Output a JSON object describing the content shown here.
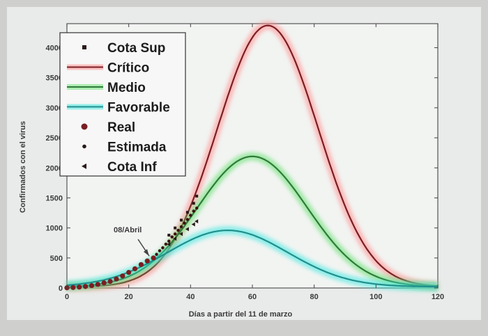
{
  "chart_data": {
    "type": "line",
    "xlabel": "Días a partir del 11 de marzo",
    "ylabel": "Confirmados con el virus",
    "xlim": [
      0,
      120
    ],
    "ylim": [
      0,
      4400
    ],
    "x_ticks": [
      0,
      20,
      40,
      60,
      80,
      100,
      120
    ],
    "y_ticks": [
      0,
      500,
      1000,
      1500,
      2000,
      2500,
      3000,
      3500,
      4000
    ],
    "legend_position": "top-left",
    "grid": false,
    "annotation": {
      "text": "08/Abril",
      "x": 28,
      "y": 500
    },
    "legend": [
      "Cota Sup",
      "Crítico",
      "Medio",
      "Favorable",
      "Real",
      "Estimada",
      "Cota Inf"
    ],
    "series": [
      {
        "name": "Crítico",
        "color": "#7a1e22",
        "glow": "#ff8a8a",
        "peak_x": 65,
        "peak_y": 4350,
        "width": 16.3,
        "x": [
          0,
          10,
          20,
          30,
          40,
          50,
          60,
          65,
          70,
          80,
          90,
          100,
          110,
          120
        ],
        "y": [
          60,
          120,
          280,
          640,
          1470,
          2900,
          4200,
          4350,
          4200,
          3150,
          1900,
          900,
          320,
          90
        ]
      },
      {
        "name": "Medio",
        "color": "#2f7a3a",
        "glow": "#5fe06a",
        "peak_x": 60,
        "peak_y": 2170,
        "width": 17.8,
        "x": [
          0,
          10,
          20,
          30,
          40,
          50,
          60,
          70,
          80,
          90,
          100,
          110,
          120
        ],
        "y": [
          60,
          120,
          280,
          610,
          1150,
          1800,
          2170,
          2000,
          1500,
          850,
          380,
          140,
          40
        ]
      },
      {
        "name": "Favorable",
        "color": "#1f8f8c",
        "glow": "#3de8e0",
        "peak_x": 52,
        "peak_y": 940,
        "width": 19.5,
        "x": [
          0,
          10,
          20,
          30,
          40,
          50,
          52,
          60,
          70,
          80,
          90,
          100,
          110,
          120
        ],
        "y": [
          60,
          110,
          260,
          560,
          860,
          940,
          940,
          880,
          650,
          380,
          180,
          70,
          20,
          5
        ]
      }
    ],
    "real": {
      "x": [
        0,
        2,
        4,
        6,
        8,
        10,
        12,
        14,
        16,
        18,
        20,
        22,
        24,
        26,
        28
      ],
      "y": [
        3,
        8,
        15,
        25,
        40,
        60,
        85,
        110,
        150,
        200,
        260,
        320,
        390,
        450,
        500
      ]
    },
    "estimada": {
      "x": [
        29,
        30,
        31,
        32,
        33,
        34,
        35,
        36,
        37,
        38,
        39,
        40,
        41,
        42
      ],
      "y": [
        560,
        620,
        670,
        730,
        780,
        850,
        900,
        960,
        1020,
        1080,
        1140,
        1210,
        1280,
        1330
      ]
    },
    "cota_sup": {
      "x": [
        33,
        35,
        37,
        39,
        41,
        42
      ],
      "y": [
        880,
        1000,
        1130,
        1260,
        1410,
        1530
      ]
    },
    "cota_inf": {
      "x": [
        33,
        35,
        37,
        39,
        41,
        42
      ],
      "y": [
        730,
        820,
        900,
        980,
        1060,
        1110
      ]
    }
  }
}
